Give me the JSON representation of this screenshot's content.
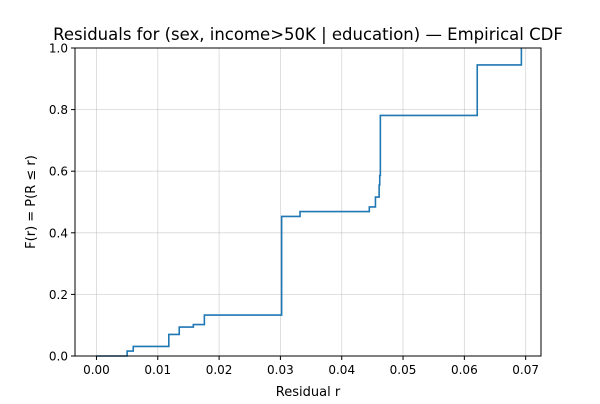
{
  "chart_data": {
    "type": "line",
    "drawstyle": "steps-post",
    "title": "Residuals for (sex, income>50K | education) — Empirical CDF",
    "xlabel": "Residual r",
    "ylabel": "F(r) = P(R ≤ r)",
    "xlim": [
      -0.0035,
      0.0725
    ],
    "ylim": [
      0,
      1.0
    ],
    "x_ticks": [
      0.0,
      0.01,
      0.02,
      0.03,
      0.04,
      0.05,
      0.06,
      0.07
    ],
    "x_tick_labels": [
      "0.00",
      "0.01",
      "0.02",
      "0.03",
      "0.04",
      "0.05",
      "0.06",
      "0.07"
    ],
    "y_ticks": [
      0.0,
      0.2,
      0.4,
      0.6,
      0.8,
      1.0
    ],
    "y_tick_labels": [
      "0.0",
      "0.2",
      "0.4",
      "0.6",
      "0.8",
      "1.0"
    ],
    "grid": true,
    "line_color": "#1f77b4",
    "series": [
      {
        "x": [
          0.0,
          0.005,
          0.006,
          0.0113,
          0.0118,
          0.0135,
          0.0158,
          0.0176,
          0.0302,
          0.0332,
          0.0445,
          0.0455,
          0.0461,
          0.0462,
          0.0463,
          0.0621,
          0.0693
        ],
        "y": [
          0.0,
          0.016,
          0.031,
          0.031,
          0.07,
          0.094,
          0.102,
          0.133,
          0.453,
          0.469,
          0.484,
          0.516,
          0.555,
          0.586,
          0.781,
          0.945,
          1.0
        ]
      }
    ]
  }
}
